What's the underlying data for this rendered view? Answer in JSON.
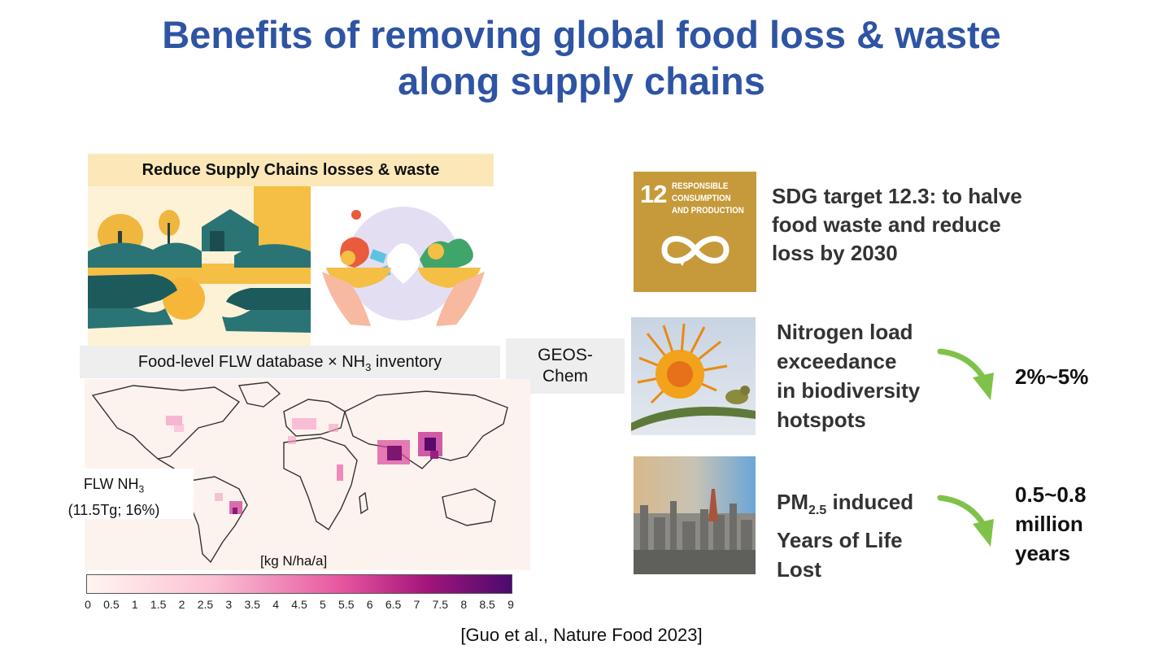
{
  "title": {
    "line1": "Benefits of removing global food loss & waste",
    "line2": "along supply chains"
  },
  "banner": "Reduce Supply Chains losses & waste",
  "database_label": {
    "prefix": "Food-level FLW database × NH",
    "sub": "3",
    "suffix": " inventory"
  },
  "geos_chem": {
    "line1": "GEOS-",
    "line2": "Chem"
  },
  "map": {
    "flw_label": {
      "prefix": "FLW NH",
      "sub": "3",
      "line2": "(11.5Tg; 16%)"
    },
    "unit": "[kg N/ha/a]",
    "colorbar_ticks": [
      "0",
      "0.5",
      "1",
      "1.5",
      "2",
      "2.5",
      "3",
      "3.5",
      "4",
      "4.5",
      "5",
      "5.5",
      "6",
      "6.5",
      "7",
      "7.5",
      "8",
      "8.5",
      "9"
    ]
  },
  "sdg_icon": {
    "number": "12",
    "line1": "RESPONSIBLE",
    "line2": "CONSUMPTION",
    "line3": "AND PRODUCTION"
  },
  "sdg_text": {
    "line1": "SDG target 12.3: to halve",
    "line2": "food waste and reduce",
    "line3": "loss by 2030"
  },
  "nitrogen": {
    "line1": "Nitrogen load",
    "line2": "exceedance",
    "line3": "in biodiversity",
    "line4": "hotspots",
    "value": "2%~5%"
  },
  "pm": {
    "prefix": "PM",
    "sub": "2.5",
    "suffix": " induced",
    "line2": "Years of Life",
    "line3": "Lost",
    "value_line1": "0.5~0.8",
    "value_line2": "million",
    "value_line3": "years"
  },
  "citation": "[Guo et al., Nature Food 2023]",
  "colors": {
    "title": "#2e54a3",
    "banner_bg": "#fbe7b8",
    "sdg_gold": "#c69a3a",
    "arrow_green": "#7fc24a",
    "colorbar_low": "#fff5f0",
    "colorbar_high": "#4a0a6e"
  }
}
